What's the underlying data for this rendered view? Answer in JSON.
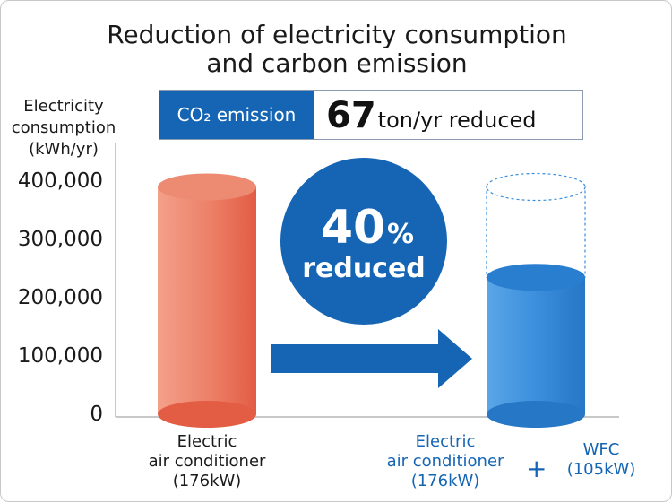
{
  "title_line1": "Reduction of electricity consumption",
  "title_line2": "and carbon emission",
  "colors": {
    "accent_blue": "#1565b4",
    "bar_red": "#e8604a",
    "bar_blue": "#2f86d6"
  },
  "banner": {
    "tag": "CO₂ emission",
    "value": "67",
    "unit": "ton/yr reduced"
  },
  "badge": {
    "percent": "40",
    "percent_sign": "%",
    "text": "reduced"
  },
  "chart_data": {
    "type": "bar",
    "ylabel": [
      "Electricity",
      "consumption",
      "(kWh/yr)"
    ],
    "yticks": [
      "0",
      "100,000",
      "200,000",
      "300,000",
      "400,000"
    ],
    "ylim": [
      0,
      400000
    ],
    "categories": [
      [
        "Electric",
        "air conditioner",
        "(176kW)"
      ],
      [
        "Electric",
        "air conditioner",
        "(176kW)"
      ]
    ],
    "second_category_extra": [
      "WFC",
      "(105kW)"
    ],
    "plus_label": "+",
    "values": [
      390000,
      235000
    ],
    "reference_value": 390000
  }
}
